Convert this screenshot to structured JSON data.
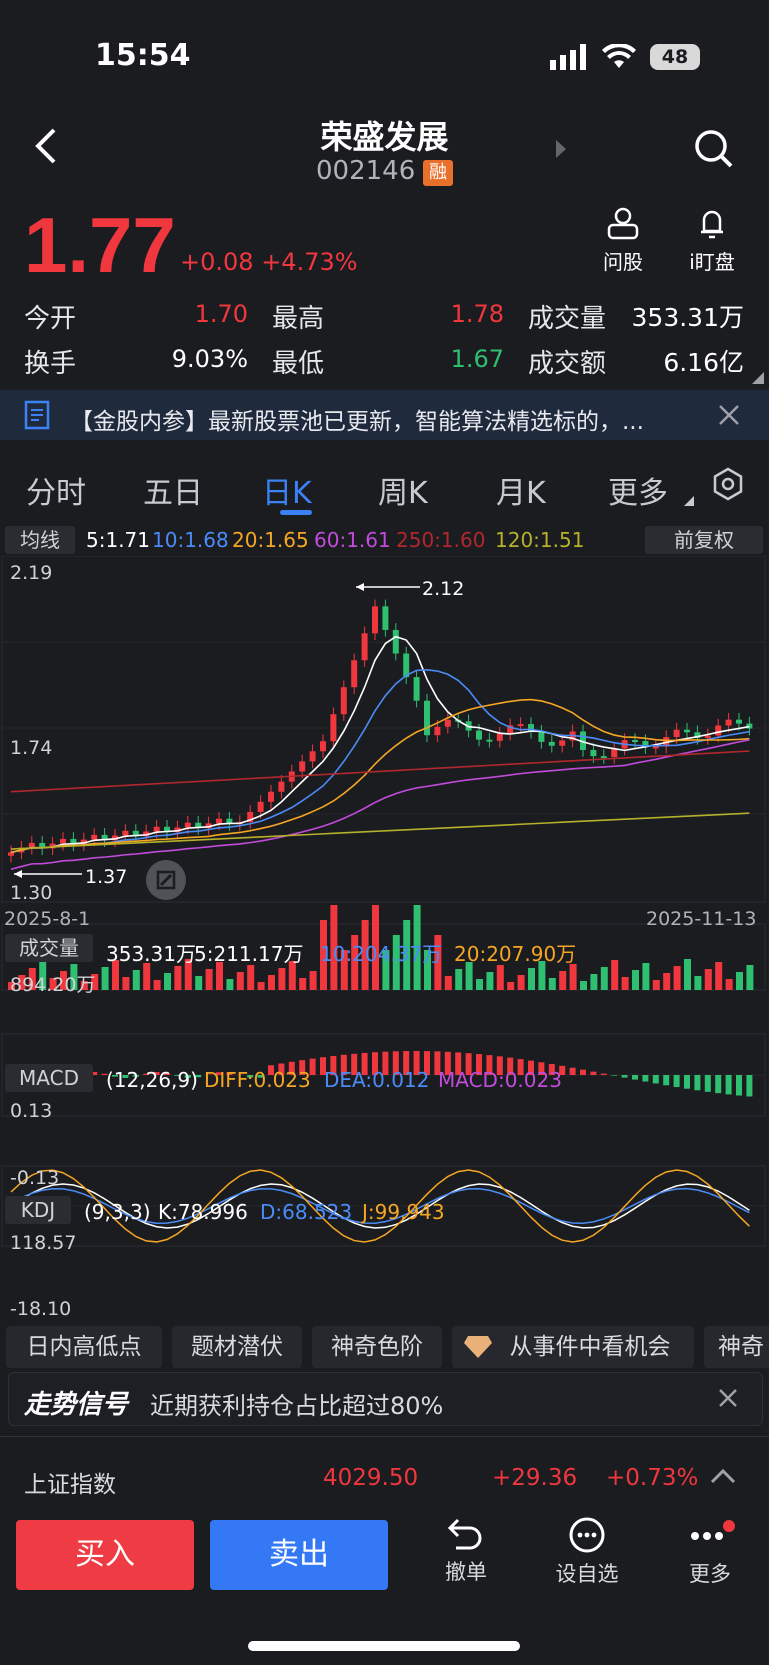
{
  "status_bar": {
    "time": "15:54",
    "battery": "48"
  },
  "header": {
    "title": "荣盛发展",
    "code": "002146",
    "badge": "融"
  },
  "quote": {
    "price": "1.77",
    "change": "+0.08",
    "change_pct": "+4.73%",
    "open_label": "今开",
    "open": "1.70",
    "high_label": "最高",
    "high": "1.78",
    "volume_label": "成交量",
    "volume": "353.31万",
    "turnover_label": "换手",
    "turnover": "9.03%",
    "low_label": "最低",
    "low": "1.67",
    "amount_label": "成交额",
    "amount": "6.16亿"
  },
  "actions": {
    "ask": "问股",
    "watch": "i盯盘"
  },
  "banner": {
    "text": "【金股内参】最新股票池已更新，智能算法精选标的，..."
  },
  "tabs": [
    "分时",
    "五日",
    "日K",
    "周K",
    "月K",
    "更多"
  ],
  "ma": {
    "label": "均线",
    "ma5": "5:1.71",
    "ma10": "10:1.68",
    "ma20": "20:1.65",
    "ma60": "60:1.61",
    "ma250": "250:1.60",
    "ma120": "120:1.51",
    "adjust": "前复权"
  },
  "kline": {
    "y_top": "2.19",
    "y_mid": "1.74",
    "y_bot": "1.30",
    "high_mark": "2.12",
    "low_mark": "1.37",
    "date_start": "2025-8-1",
    "date_end": "2025-11-13"
  },
  "volume": {
    "label": "成交量",
    "v": "353.31万",
    "v5": "5:211.17万",
    "v10": "10:204.37万",
    "v20": "20:207.90万",
    "max": "894.20万"
  },
  "macd": {
    "label": "MACD",
    "params": "(12,26,9)",
    "diff": "DIFF:0.023",
    "dea": "DEA:0.012",
    "macd": "MACD:0.023",
    "top": "0.13",
    "bot": "-0.13"
  },
  "kdj": {
    "label": "KDJ",
    "params": "(9,3,3)",
    "k": "K:78.996",
    "d": "D:68.523",
    "j": "J:99.943",
    "top": "118.57",
    "bot": "-18.10"
  },
  "chips": [
    "日内高低点",
    "题材潜伏",
    "神奇色阶",
    "从事件中看机会",
    "神奇"
  ],
  "signal": {
    "title": "走势信号",
    "text": "近期获利持仓占比超过80%"
  },
  "index": {
    "name": "上证指数",
    "value": "4029.50",
    "change": "+29.36",
    "pct": "+0.73%"
  },
  "bottom": {
    "buy": "买入",
    "sell": "卖出",
    "cancel": "撤单",
    "favorite": "设自选",
    "more": "更多"
  },
  "colors": {
    "up": "#f0373e",
    "down": "#2fbf71",
    "accent": "#3b82f6",
    "bg": "#1b1c20"
  }
}
